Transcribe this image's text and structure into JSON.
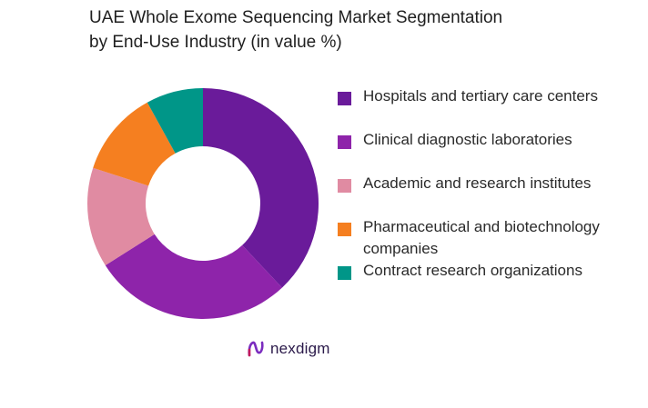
{
  "title_lines": [
    "UAE Whole Exome Sequencing Market Segmentation",
    "by End-Use Industry (in value %)"
  ],
  "brand": "nexdigm",
  "chart_data": {
    "type": "pie",
    "title": "UAE Whole Exome Sequencing Market Segmentation by End-Use Industry (in value %)",
    "donut": true,
    "legend_position": "right",
    "categories": [
      "Hospitals and tertiary care centers",
      "Clinical diagnostic laboratories",
      "Academic and research institutes",
      "Pharmaceutical and biotechnology companies",
      "Contract research organizations"
    ],
    "values": [
      38,
      28,
      14,
      12,
      8
    ],
    "colors": [
      "#6a1b9a",
      "#8e24aa",
      "#e08ba2",
      "#f57f20",
      "#009688"
    ]
  }
}
